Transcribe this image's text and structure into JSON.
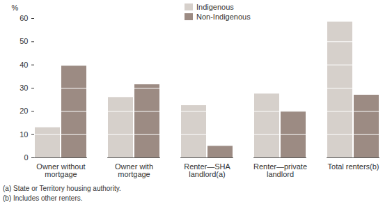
{
  "chart_data": {
    "type": "bar",
    "categories": [
      "Owner without mortgage",
      "Owner with mortgage",
      "Renter—SHA landlord(a)",
      "Renter—private landlord",
      "Total renters(b)"
    ],
    "series": [
      {
        "name": "Indigenous",
        "color": "#d6d0cb",
        "values": [
          13,
          26,
          22.5,
          27.5,
          58.5
        ]
      },
      {
        "name": "Non-Indigenous",
        "color": "#9c8b83",
        "values": [
          39.5,
          31.5,
          5,
          20,
          27
        ]
      }
    ],
    "ylabel": "%",
    "ylim": [
      0,
      60
    ],
    "yticks": [
      0,
      10,
      20,
      30,
      40,
      50,
      60
    ],
    "grid": true,
    "legend": "top",
    "notes": [
      "(a) State or Territory housing authority.",
      "(b) Includes other renters."
    ]
  }
}
